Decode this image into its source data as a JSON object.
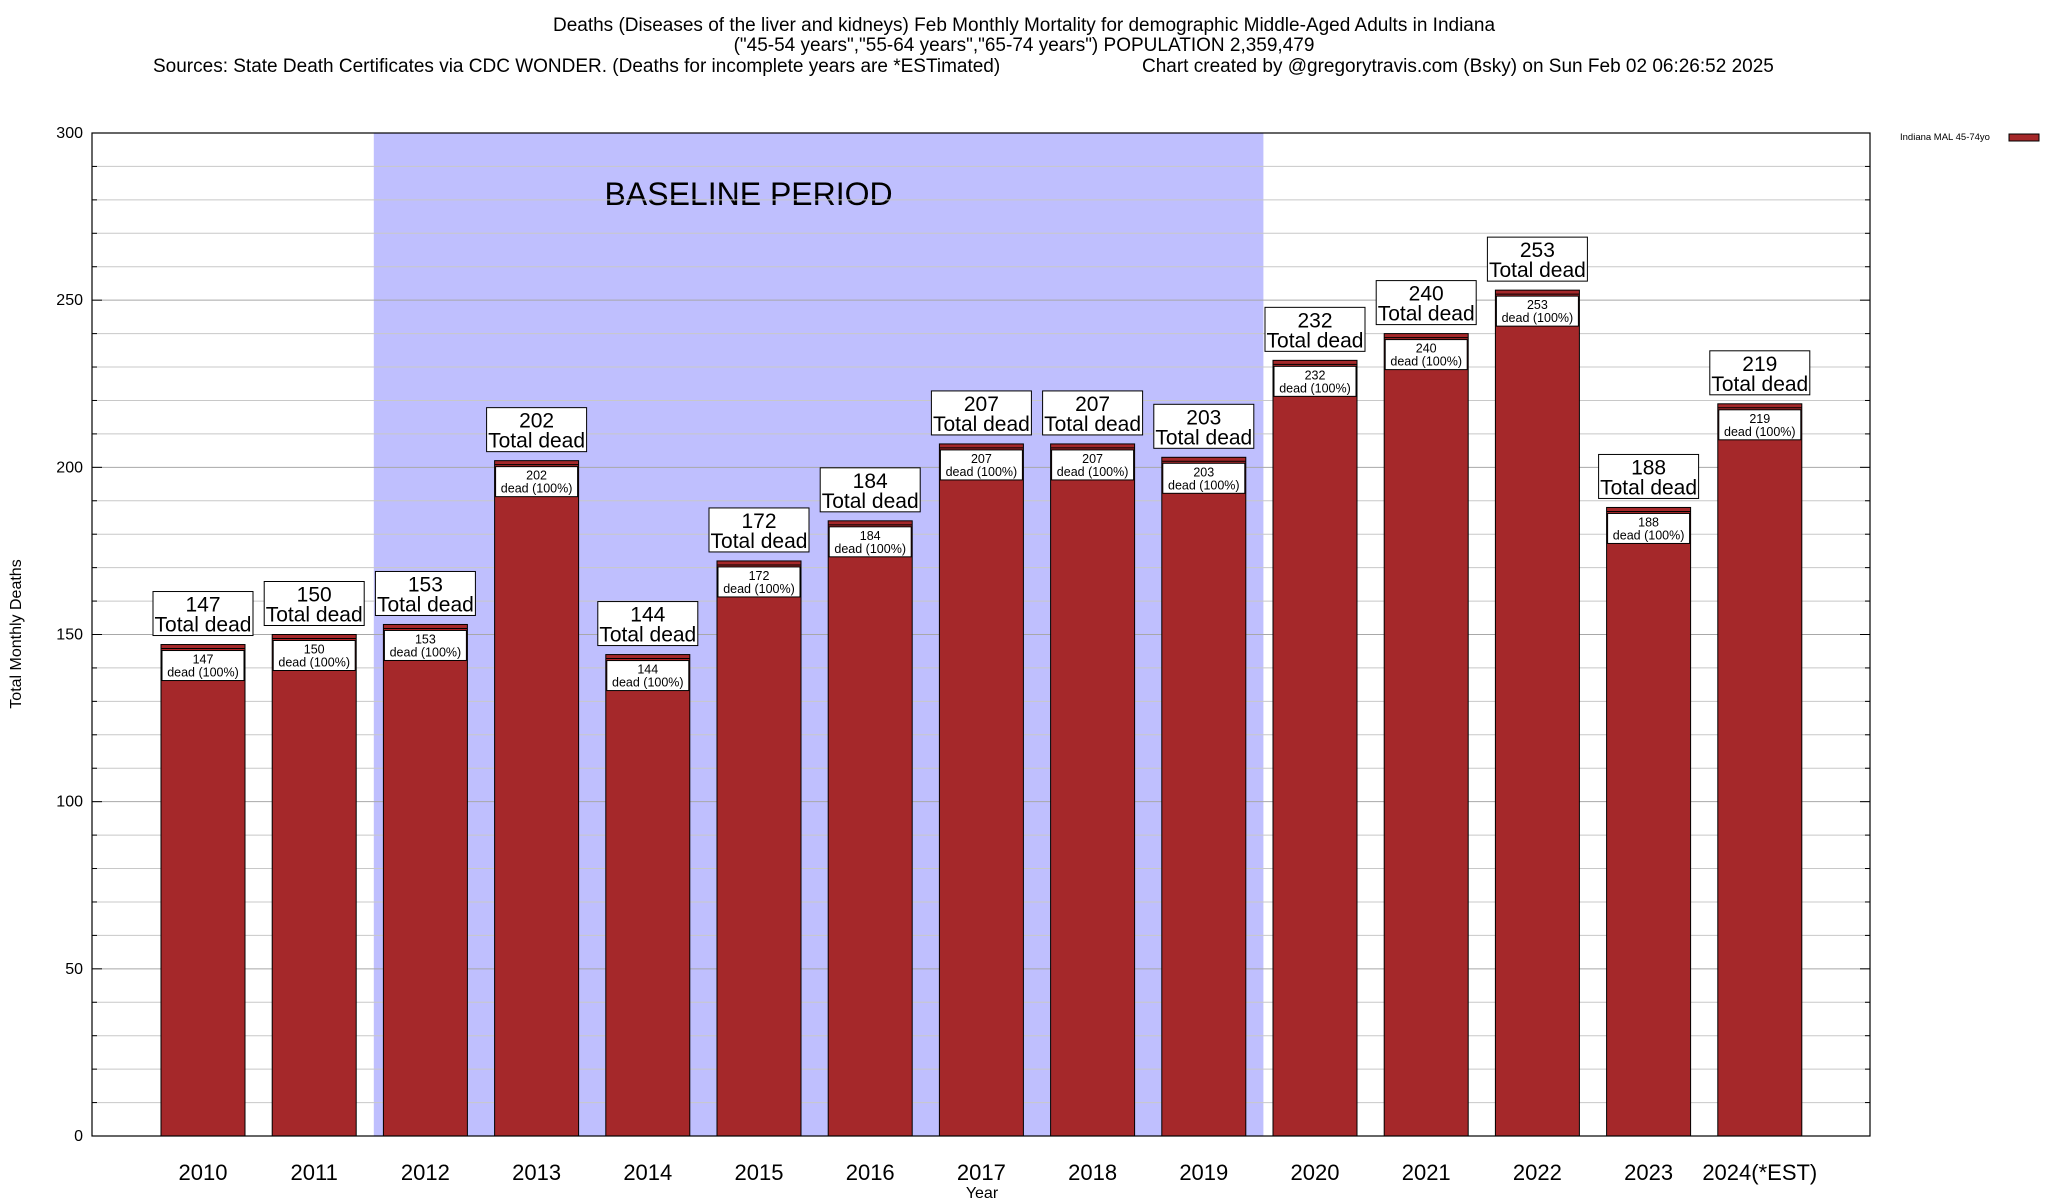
{
  "title": {
    "line1": "Deaths (Diseases of the liver and kidneys) Feb Monthly Mortality for demographic Middle-Aged Adults in Indiana",
    "line2": "(\"45-54 years\",\"55-64 years\",\"65-74 years\") POPULATION 2,359,479",
    "line3_left": "Sources: State Death Certificates via CDC WONDER. (Deaths for incomplete years are *ESTimated)",
    "line3_right": "Chart created by @gregorytravis.com (Bsky) on Sun Feb 02 06:26:52 2025"
  },
  "legend": {
    "label": "Indiana MAL 45-74yo",
    "color": "#a5282a"
  },
  "colors": {
    "bar": "#a5282a",
    "baseline_band": "#bfbffe",
    "grid": "#c8c8c8"
  },
  "chart_data": {
    "type": "bar",
    "title": "Deaths (Diseases of the liver and kidneys) Feb Monthly Mortality for demographic Middle-Aged Adults in Indiana",
    "xlabel": "Year",
    "ylabel": "Total Monthly Deaths",
    "ylim": [
      0,
      300
    ],
    "yticks": [
      0,
      50,
      100,
      150,
      200,
      250,
      300
    ],
    "grid": true,
    "legend_position": "top-right",
    "categories": [
      "2010",
      "2011",
      "2012",
      "2013",
      "2014",
      "2015",
      "2016",
      "2017",
      "2018",
      "2019",
      "2020",
      "2021",
      "2022",
      "2023",
      "2024(*EST)"
    ],
    "series": [
      {
        "name": "Indiana MAL 45-74yo",
        "values": [
          147,
          150,
          153,
          202,
          144,
          172,
          184,
          207,
          207,
          203,
          232,
          240,
          253,
          188,
          219
        ]
      }
    ],
    "top_labels": [
      "147",
      "150",
      "153",
      "202",
      "144",
      "172",
      "184",
      "207",
      "207",
      "203",
      "232",
      "240",
      "253",
      "188",
      "219"
    ],
    "top_label_suffix": "Total dead",
    "inner_labels": [
      "147",
      "150",
      "153",
      "202",
      "144",
      "172",
      "184",
      "207",
      "207",
      "203",
      "232",
      "240",
      "253",
      "188",
      "219"
    ],
    "inner_label_suffix": "dead (100%)",
    "baseline_period": {
      "label": "BASELINE PERIOD",
      "from": "2012",
      "to": "2019"
    }
  }
}
